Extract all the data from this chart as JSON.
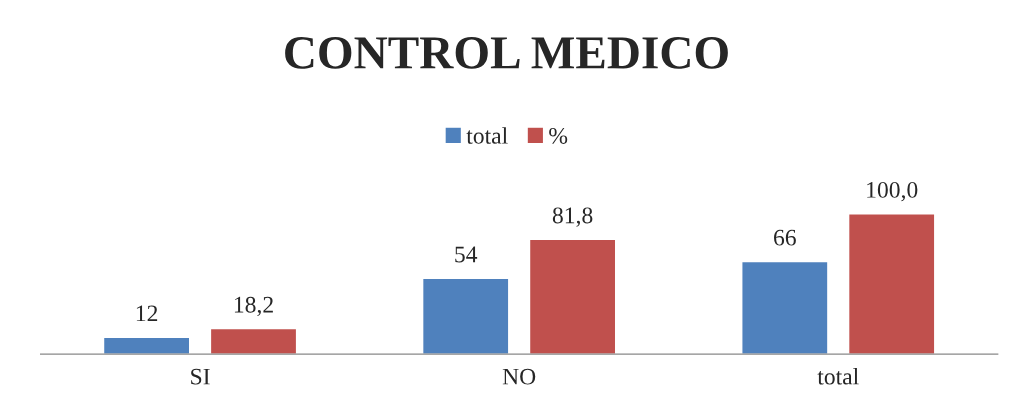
{
  "chart_data": {
    "type": "bar",
    "title": "CONTROL MEDICO",
    "categories": [
      "SI",
      "NO",
      "total"
    ],
    "series": [
      {
        "name": "total",
        "color": "#4f81bd",
        "values": [
          12,
          54,
          66
        ],
        "value_labels": [
          "12",
          "54",
          "66"
        ]
      },
      {
        "name": "%",
        "color": "#c0504d",
        "values": [
          18.2,
          81.8,
          100.0
        ],
        "value_labels": [
          "18,2",
          "81,8",
          "100,0"
        ]
      }
    ],
    "legend": "top",
    "grid": false
  }
}
